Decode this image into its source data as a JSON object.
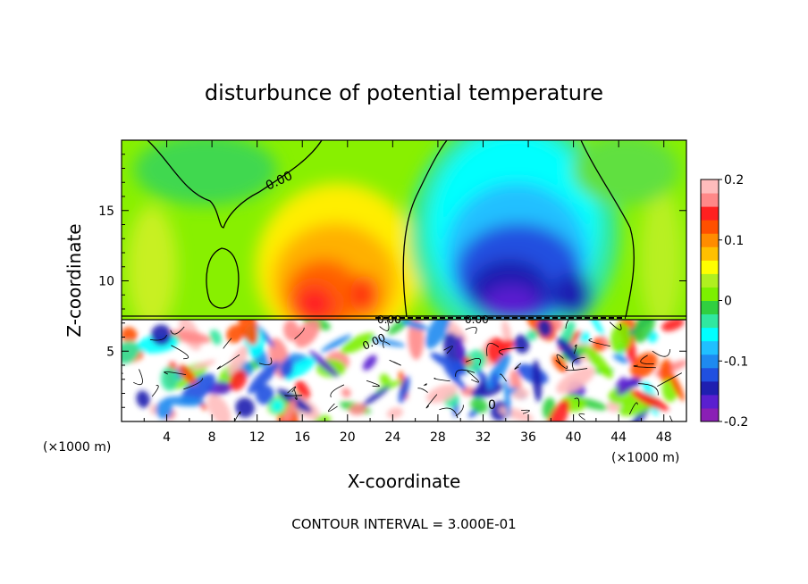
{
  "chart_data": {
    "type": "heatmap",
    "title": "disturbunce of potential temperature",
    "xlabel": "X-coordinate",
    "ylabel": "Z-coordinate",
    "x_unit": "(×1000 m)",
    "y_unit": "(×1000 m)",
    "xlim": [
      0,
      50
    ],
    "ylim": [
      0,
      20
    ],
    "x_ticks": [
      "4",
      "8",
      "12",
      "16",
      "20",
      "24",
      "28",
      "32",
      "36",
      "40",
      "44",
      "48"
    ],
    "y_ticks": [
      "5",
      "10",
      "15"
    ],
    "colorbar": {
      "range": [
        -0.2,
        0.2
      ],
      "tick_labels": [
        "0.2",
        "0.1",
        "0",
        "-0.1",
        "-0.2"
      ],
      "colors": [
        "#8a1fb5",
        "#5a1fd0",
        "#1f1fb0",
        "#2050e0",
        "#1e8af0",
        "#20c0ff",
        "#00ffff",
        "#30e8a0",
        "#30d040",
        "#7cf000",
        "#b0f020",
        "#ffff00",
        "#ffc000",
        "#ff8c00",
        "#ff5000",
        "#ff2020",
        "#ff8888",
        "#ffbcbc"
      ]
    },
    "contour_labels": [
      "0.00",
      "0.00",
      "0.00",
      "0.00",
      "0"
    ],
    "footer": "CONTOUR INTERVAL = 3.000E-01"
  }
}
